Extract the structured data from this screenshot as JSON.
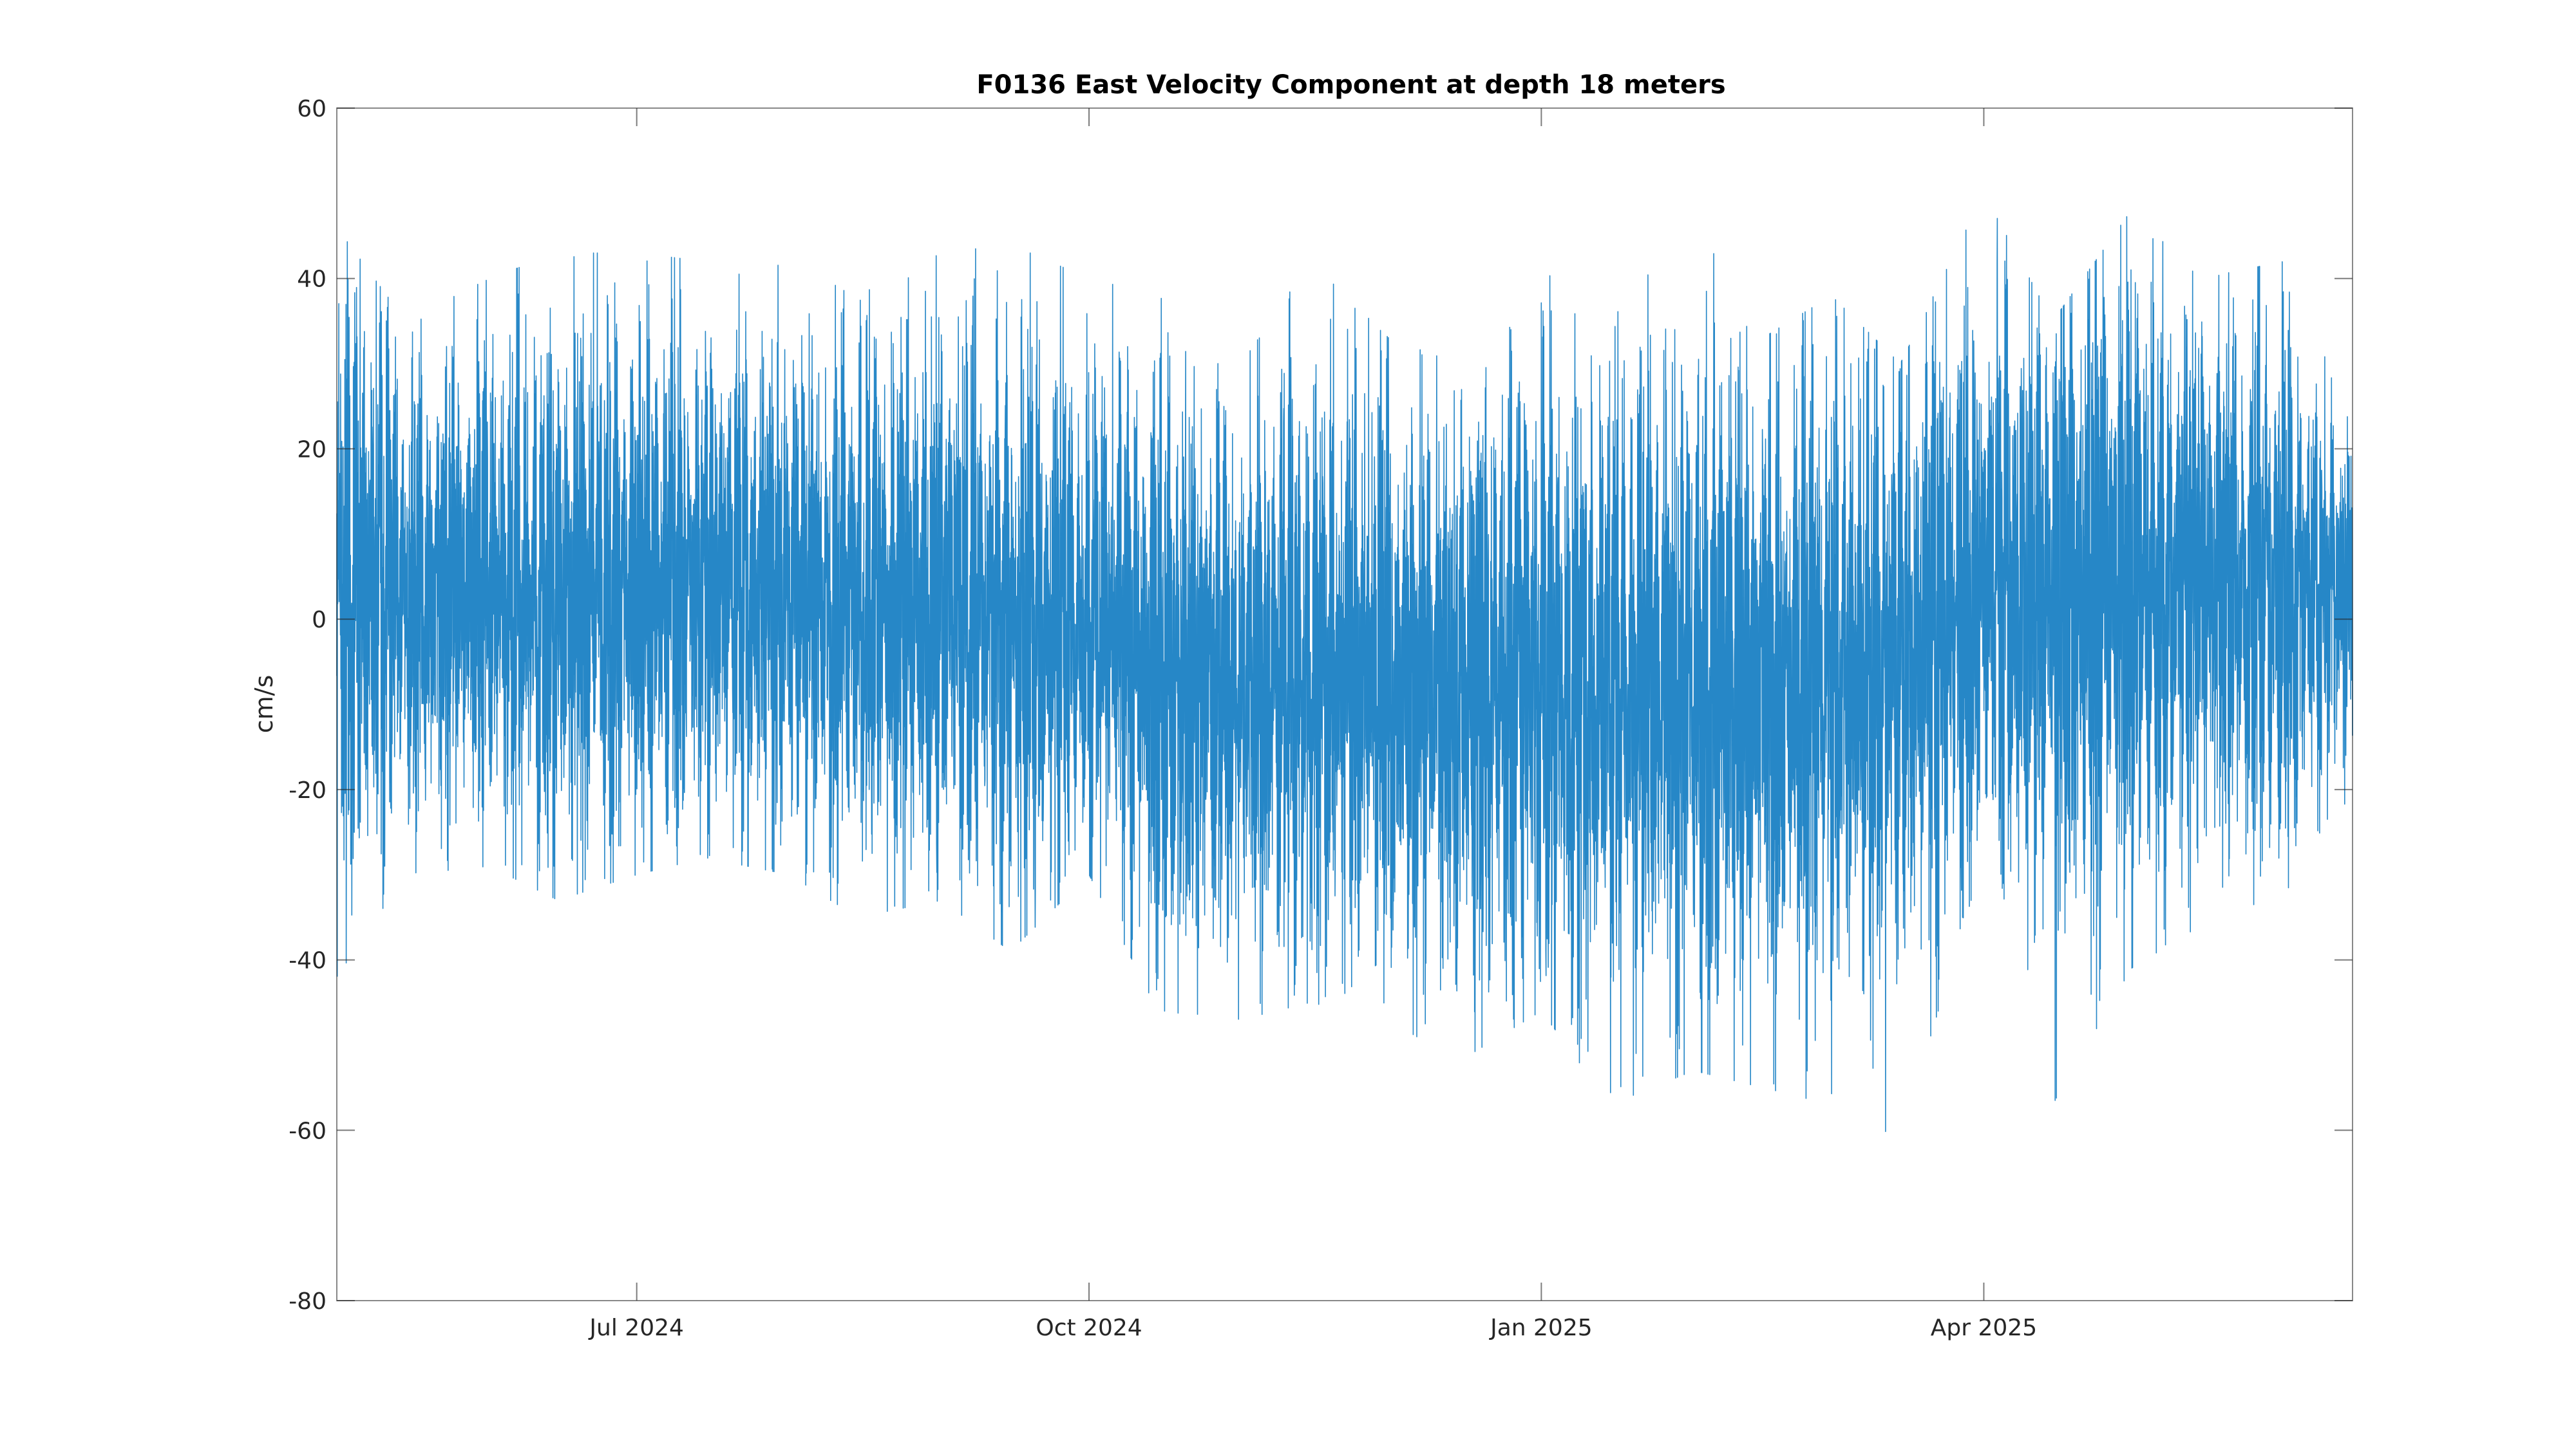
{
  "chart_data": {
    "type": "line",
    "title": "F0136 East Velocity Component at depth 18 meters",
    "xlabel": "",
    "ylabel": "cm/s",
    "xlim": [
      "2024-05-01",
      "2025-06-15"
    ],
    "ylim": [
      -80,
      60
    ],
    "yticks": [
      {
        "value": 60,
        "label": "60"
      },
      {
        "value": 40,
        "label": "40"
      },
      {
        "value": 20,
        "label": "20"
      },
      {
        "value": 0,
        "label": "0"
      },
      {
        "value": -20,
        "label": "-20"
      },
      {
        "value": -40,
        "label": "-40"
      },
      {
        "value": -60,
        "label": "-60"
      },
      {
        "value": -80,
        "label": "-80"
      }
    ],
    "xticks": [
      {
        "value": "2024-07-01",
        "label": "Jul 2024"
      },
      {
        "value": "2024-10-01",
        "label": "Oct 2024"
      },
      {
        "value": "2025-01-01",
        "label": "Jan 2025"
      },
      {
        "value": "2025-04-01",
        "label": "Apr 2025"
      }
    ],
    "grid": false,
    "legend": "none",
    "line_color": "#0072BD",
    "series": [
      {
        "name": "",
        "sampling": "hourly",
        "envelope": [
          {
            "x": "2024-05-01",
            "min": -42,
            "max": 46,
            "mean": 4
          },
          {
            "x": "2024-05-15",
            "min": -30,
            "max": 35,
            "mean": 3
          },
          {
            "x": "2024-06-01",
            "min": -29,
            "max": 40,
            "mean": 4
          },
          {
            "x": "2024-06-15",
            "min": -33,
            "max": 43,
            "mean": 3
          },
          {
            "x": "2024-07-01",
            "min": -30,
            "max": 43,
            "mean": 3
          },
          {
            "x": "2024-07-15",
            "min": -28,
            "max": 42,
            "mean": 5
          },
          {
            "x": "2024-08-01",
            "min": -30,
            "max": 44,
            "mean": 4
          },
          {
            "x": "2024-08-15",
            "min": -35,
            "max": 38,
            "mean": 2
          },
          {
            "x": "2024-09-01",
            "min": -33,
            "max": 43,
            "mean": 2
          },
          {
            "x": "2024-09-15",
            "min": -39,
            "max": 44,
            "mean": 0
          },
          {
            "x": "2024-10-01",
            "min": -30,
            "max": 40,
            "mean": -1
          },
          {
            "x": "2024-10-15",
            "min": -46,
            "max": 38,
            "mean": -5
          },
          {
            "x": "2024-11-01",
            "min": -47,
            "max": 30,
            "mean": -8
          },
          {
            "x": "2024-11-15",
            "min": -45,
            "max": 42,
            "mean": -6
          },
          {
            "x": "2024-12-01",
            "min": -47,
            "max": 33,
            "mean": -7
          },
          {
            "x": "2024-12-15",
            "min": -52,
            "max": 30,
            "mean": -9
          },
          {
            "x": "2025-01-01",
            "min": -46,
            "max": 43,
            "mean": -8
          },
          {
            "x": "2025-01-15",
            "min": -57,
            "max": 35,
            "mean": -9
          },
          {
            "x": "2025-02-01",
            "min": -53,
            "max": 47,
            "mean": -7
          },
          {
            "x": "2025-02-15",
            "min": -55,
            "max": 33,
            "mean": -8
          },
          {
            "x": "2025-03-01",
            "min": -57,
            "max": 38,
            "mean": -7
          },
          {
            "x": "2025-03-15",
            "min": -61,
            "max": 30,
            "mean": -5
          },
          {
            "x": "2025-04-01",
            "min": -28,
            "max": 50,
            "mean": 5
          },
          {
            "x": "2025-04-15",
            "min": -57,
            "max": 35,
            "mean": 2
          },
          {
            "x": "2025-05-01",
            "min": -41,
            "max": 48,
            "mean": 5
          },
          {
            "x": "2025-05-15",
            "min": -36,
            "max": 40,
            "mean": 4
          },
          {
            "x": "2025-06-01",
            "min": -35,
            "max": 42,
            "mean": 4
          },
          {
            "x": "2025-06-15",
            "min": -20,
            "max": 25,
            "mean": 3
          }
        ]
      }
    ]
  }
}
